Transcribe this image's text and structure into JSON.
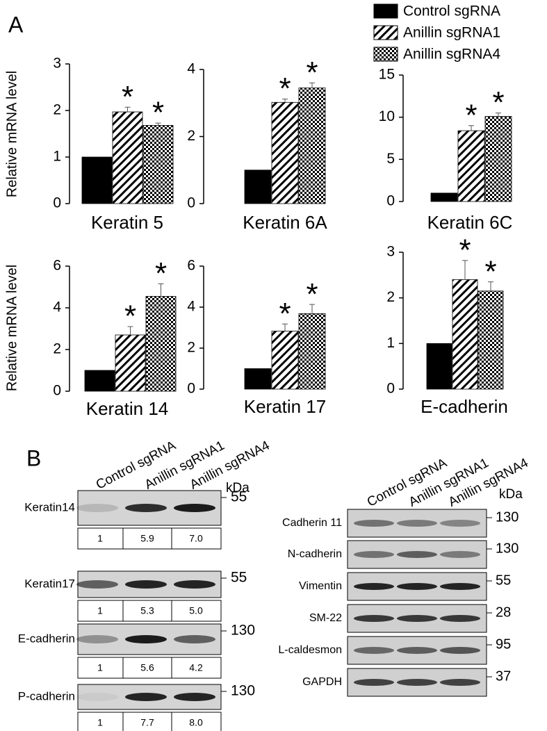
{
  "chart_data": [
    {
      "type": "bar",
      "xlabel": "Keratin 5",
      "ylabel": "Relative mRNA level",
      "values": [
        1,
        1.97,
        1.68
      ],
      "errors": [
        null,
        0.1,
        0.05
      ],
      "annotations": [
        null,
        "*",
        "*"
      ],
      "ylim": [
        0,
        3
      ],
      "yticks": [
        0,
        1,
        2,
        3
      ]
    },
    {
      "type": "bar",
      "xlabel": "Keratin 6A",
      "values": [
        1,
        3.02,
        3.45
      ],
      "errors": [
        null,
        0.1,
        0.15
      ],
      "annotations": [
        null,
        "*",
        "*"
      ],
      "ylim": [
        0,
        4
      ],
      "yticks": [
        0,
        2,
        4
      ]
    },
    {
      "type": "bar",
      "xlabel": "Keratin 6C",
      "values": [
        1,
        8.4,
        10.1
      ],
      "errors": [
        null,
        0.6,
        0.4
      ],
      "annotations": [
        null,
        "*",
        "*"
      ],
      "ylim": [
        0,
        15
      ],
      "yticks": [
        0,
        5,
        10,
        15
      ]
    },
    {
      "type": "bar",
      "xlabel": "Keratin 14",
      "ylabel": "Relative mRNA level",
      "values": [
        1,
        2.7,
        4.55
      ],
      "errors": [
        null,
        0.4,
        0.6
      ],
      "annotations": [
        null,
        "*",
        "*"
      ],
      "ylim": [
        0,
        6
      ],
      "yticks": [
        0,
        2,
        4,
        6
      ]
    },
    {
      "type": "bar",
      "xlabel": "Keratin 17",
      "values": [
        1,
        2.83,
        3.68
      ],
      "errors": [
        null,
        0.35,
        0.45
      ],
      "annotations": [
        null,
        "*",
        "*"
      ],
      "ylim": [
        0,
        6
      ],
      "yticks": [
        0,
        2,
        4,
        6
      ]
    },
    {
      "type": "bar",
      "xlabel": "E-cadherin",
      "values": [
        1,
        2.4,
        2.15
      ],
      "errors": [
        null,
        0.42,
        0.2
      ],
      "annotations": [
        null,
        "*",
        "*"
      ],
      "ylim": [
        0,
        3
      ],
      "yticks": [
        0,
        1,
        2,
        3
      ]
    }
  ],
  "legend": [
    "Control sgRNA",
    "Anillin sgRNA1",
    "Anillin sgRNA4"
  ],
  "panel_a": "A",
  "panel_b": {
    "label": "B",
    "kda": "kDa",
    "lanes": [
      "Control sgRNA",
      "Anillin sgRNA1",
      "Anillin sgRNA4"
    ],
    "left_rows": [
      {
        "name": "Keratin14",
        "size": "55",
        "quant": [
          "1",
          "5.9",
          "7.0"
        ]
      },
      {
        "name": "Keratin17",
        "size": "55",
        "quant": [
          "1",
          "5.3",
          "5.0"
        ]
      },
      {
        "name": "E-cadherin",
        "size": "130",
        "quant": [
          "1",
          "5.6",
          "4.2"
        ]
      },
      {
        "name": "P-cadherin",
        "size": "130",
        "quant": [
          "1",
          "7.7",
          "8.0"
        ]
      }
    ],
    "right_rows": [
      {
        "name": "Cadherin 11",
        "size": "130"
      },
      {
        "name": "N-cadherin",
        "size": "130"
      },
      {
        "name": "Vimentin",
        "size": "55"
      },
      {
        "name": "SM-22",
        "size": "28"
      },
      {
        "name": "L-caldesmon",
        "size": "95"
      },
      {
        "name": "GAPDH",
        "size": "37"
      }
    ]
  }
}
